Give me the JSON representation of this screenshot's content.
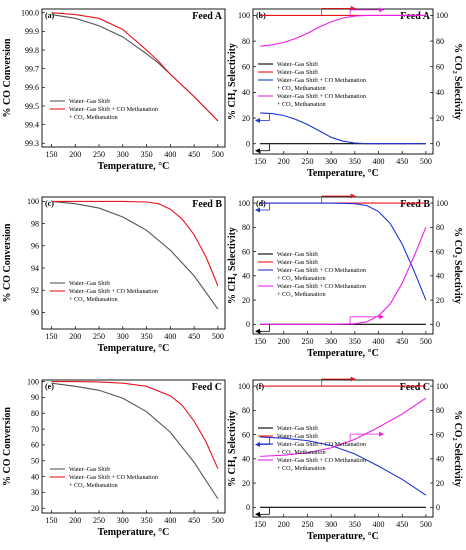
{
  "colors": {
    "black": "#000000",
    "red": "#e8141c",
    "gray": "#555555",
    "blue": "#1f33d6",
    "magenta": "#ee1ee8"
  },
  "chart_data": [
    {
      "type": "line",
      "tag": "(a)",
      "feed": "Feed A",
      "xlabel": "Temperature, °C",
      "ylabel": "% CO Conversion",
      "xlim": [
        130,
        515
      ],
      "ylim": [
        99.28,
        100.02
      ],
      "xticks": [
        "150",
        "200",
        "250",
        "300",
        "350",
        "400",
        "450",
        "500"
      ],
      "yticks": [
        "99.3",
        "99.4",
        "99.5",
        "99.6",
        "99.7",
        "99.8",
        "99.9",
        "100.0"
      ],
      "legend": [
        "Water–Gas Shift",
        "Water–Gas Shift + CO Methanation",
        "+ CO₂ Methanation"
      ],
      "series": [
        {
          "name": "Water–Gas Shift",
          "color": "gray",
          "x": [
            150,
            200,
            250,
            300,
            350,
            375,
            400,
            450,
            500
          ],
          "y": [
            99.99,
            99.97,
            99.93,
            99.87,
            99.78,
            99.73,
            99.67,
            99.55,
            99.42
          ]
        },
        {
          "name": "Water–Gas Shift + CO Methanation + CO₂ Methanation",
          "color": "red",
          "x": [
            150,
            200,
            250,
            300,
            350,
            375,
            400,
            450,
            500
          ],
          "y": [
            100.0,
            99.99,
            99.97,
            99.91,
            99.8,
            99.74,
            99.67,
            99.55,
            99.42
          ]
        }
      ]
    },
    {
      "type": "line",
      "tag": "(b)",
      "feed": "Feed A",
      "xlabel": "Temperature, °C",
      "ylabel": "% CH₄ Selectivity",
      "y2label": "% CO₂ Selectivity",
      "xlim": [
        135,
        515
      ],
      "ylim": [
        -8,
        105
      ],
      "y2lim": [
        -8,
        105
      ],
      "xticks": [
        "150",
        "200",
        "250",
        "300",
        "350",
        "400",
        "450",
        "500"
      ],
      "yticks": [
        "0",
        "20",
        "40",
        "60",
        "80",
        "100"
      ],
      "y2ticks": [
        "0",
        "20",
        "40",
        "60",
        "80",
        "100"
      ],
      "legend": [
        "Water–Gas Shift",
        "Water–Gas Shift",
        "Water–Gas Shift + CO Methanation",
        "+ CO₂ Methanation",
        "Water–Gas Shift + CO Methanation",
        "+ CO₂ Methanation"
      ],
      "series": [
        {
          "name": "Water–Gas Shift",
          "color": "black",
          "axis": "left",
          "x": [
            150,
            500
          ],
          "y": [
            0,
            0
          ]
        },
        {
          "name": "Water–Gas Shift",
          "color": "red",
          "axis": "right",
          "x": [
            150,
            500
          ],
          "y": [
            100,
            100
          ]
        },
        {
          "name": "Water–Gas Shift + CO Methanation + CO₂ Methanation",
          "color": "blue",
          "axis": "left",
          "x": [
            150,
            175,
            200,
            225,
            250,
            275,
            300,
            325,
            350,
            375,
            400,
            500
          ],
          "y": [
            24,
            23.5,
            22,
            19,
            15,
            10,
            5,
            2,
            0.5,
            0,
            0,
            0
          ]
        },
        {
          "name": "Water–Gas Shift + CO Methanation + CO₂ Methanation",
          "color": "magenta",
          "axis": "right",
          "x": [
            150,
            175,
            200,
            225,
            250,
            275,
            300,
            325,
            350,
            375,
            400,
            500
          ],
          "y": [
            76,
            77,
            79,
            82,
            86,
            91,
            95,
            98,
            99.5,
            100,
            100,
            100
          ]
        }
      ]
    },
    {
      "type": "line",
      "tag": "(c)",
      "feed": "Feed B",
      "xlabel": "Temperature, °C",
      "ylabel": "% CO Conversion",
      "xlim": [
        130,
        515
      ],
      "ylim": [
        88.5,
        100.4
      ],
      "xticks": [
        "150",
        "200",
        "250",
        "300",
        "350",
        "400",
        "450",
        "500"
      ],
      "yticks": [
        "90",
        "92",
        "94",
        "96",
        "98",
        "100"
      ],
      "legend": [
        "Water–Gas Shift",
        "Water–Gas Shift + CO Methanation",
        "+ CO₂ Methanation"
      ],
      "series": [
        {
          "name": "Water–Gas Shift",
          "color": "gray",
          "x": [
            150,
            200,
            250,
            300,
            350,
            400,
            450,
            500
          ],
          "y": [
            100,
            99.8,
            99.4,
            98.6,
            97.4,
            95.6,
            93.3,
            90.3
          ]
        },
        {
          "name": "Water–Gas Shift + CO Methanation + CO₂ Methanation",
          "color": "red",
          "x": [
            150,
            200,
            250,
            300,
            350,
            375,
            400,
            425,
            450,
            475,
            500
          ],
          "y": [
            100,
            100,
            100,
            100,
            99.95,
            99.8,
            99.3,
            98.4,
            97.0,
            95.0,
            92.4
          ]
        }
      ]
    },
    {
      "type": "line",
      "tag": "(d)",
      "feed": "Feed B",
      "xlabel": "Temperature, °C",
      "ylabel": "% CH₄ Selectivity",
      "y2label": "% CO₂ Selectivity",
      "xlim": [
        135,
        515
      ],
      "ylim": [
        -8,
        105
      ],
      "y2lim": [
        -8,
        105
      ],
      "xticks": [
        "150",
        "200",
        "250",
        "300",
        "350",
        "400",
        "450",
        "500"
      ],
      "yticks": [
        "0",
        "20",
        "40",
        "60",
        "80",
        "100"
      ],
      "y2ticks": [
        "0",
        "20",
        "40",
        "60",
        "80",
        "100"
      ],
      "legend": [
        "Water–Gas Shift",
        "Water–Gas Shift",
        "Water–Gas Shift + CO Methanation",
        "+ CO₂ Methanation",
        "Water–Gas Shift + CO Methanation",
        "+ CO₂ Methanation"
      ],
      "series": [
        {
          "name": "Water–Gas Shift",
          "color": "black",
          "axis": "left",
          "x": [
            150,
            500
          ],
          "y": [
            0,
            0
          ]
        },
        {
          "name": "Water–Gas Shift",
          "color": "red",
          "axis": "right",
          "x": [
            150,
            500
          ],
          "y": [
            100,
            100
          ]
        },
        {
          "name": "Water–Gas Shift + CO Methanation + CO₂ Methanation",
          "color": "blue",
          "axis": "left",
          "x": [
            150,
            300,
            350,
            375,
            400,
            425,
            450,
            475,
            500
          ],
          "y": [
            100,
            100,
            99.5,
            98,
            93,
            83,
            66,
            44,
            20
          ]
        },
        {
          "name": "Water–Gas Shift + CO Methanation + CO₂ Methanation",
          "color": "magenta",
          "axis": "right",
          "x": [
            150,
            300,
            350,
            375,
            400,
            425,
            450,
            475,
            500
          ],
          "y": [
            0,
            0,
            0.5,
            2,
            7,
            17,
            34,
            56,
            80
          ]
        }
      ]
    },
    {
      "type": "line",
      "tag": "(e)",
      "feed": "Feed C",
      "xlabel": "Temperature, °C",
      "ylabel": "% CO Conversion",
      "xlim": [
        130,
        515
      ],
      "ylim": [
        17,
        101
      ],
      "xticks": [
        "150",
        "200",
        "250",
        "300",
        "350",
        "400",
        "450",
        "500"
      ],
      "yticks": [
        "20",
        "30",
        "40",
        "50",
        "60",
        "70",
        "80",
        "90",
        "100"
      ],
      "legend": [
        "Water–Gas Shift",
        "Water–Gas Shift + CO Methanation",
        "+ CO₂ Methanation"
      ],
      "series": [
        {
          "name": "Water–Gas Shift",
          "color": "gray",
          "x": [
            150,
            200,
            250,
            300,
            350,
            400,
            450,
            500
          ],
          "y": [
            99,
            97,
            94.5,
            89.5,
            81,
            68,
            49,
            26
          ]
        },
        {
          "name": "Water–Gas Shift + CO Methanation + CO₂ Methanation",
          "color": "red",
          "x": [
            150,
            200,
            250,
            300,
            350,
            400,
            425,
            450,
            475,
            500
          ],
          "y": [
            100,
            100,
            99.8,
            99,
            97,
            91,
            85,
            75,
            62,
            45
          ]
        }
      ]
    },
    {
      "type": "line",
      "tag": "(f)",
      "feed": "Feed C",
      "xlabel": "Temperature, °C",
      "ylabel": "% CH₄ Selectivity",
      "y2label": "% CO₂ Selectivity",
      "xlim": [
        135,
        515
      ],
      "ylim": [
        -8,
        105
      ],
      "y2lim": [
        -8,
        105
      ],
      "xticks": [
        "150",
        "200",
        "250",
        "300",
        "350",
        "400",
        "450",
        "500"
      ],
      "yticks": [
        "0",
        "20",
        "40",
        "60",
        "80",
        "100"
      ],
      "y2ticks": [
        "0",
        "20",
        "40",
        "60",
        "80",
        "100"
      ],
      "legend": [
        "Water–Gas Shift",
        "Water–Gas Shift",
        "Water–Gas Shift + CO Methanation",
        "+ CO₂ Methanation",
        "Water–Gas Shift + CO Methanation",
        "+ CO₂ Methanation"
      ],
      "series": [
        {
          "name": "Water–Gas Shift",
          "color": "black",
          "axis": "left",
          "x": [
            150,
            500
          ],
          "y": [
            0,
            0
          ]
        },
        {
          "name": "Water–Gas Shift",
          "color": "red",
          "axis": "right",
          "x": [
            150,
            500
          ],
          "y": [
            100,
            100
          ]
        },
        {
          "name": "Water–Gas Shift + CO Methanation + CO₂ Methanation",
          "color": "blue",
          "axis": "left",
          "x": [
            150,
            200,
            250,
            300,
            350,
            400,
            450,
            500
          ],
          "y": [
            58,
            57,
            55,
            51,
            44,
            34,
            23,
            10
          ]
        },
        {
          "name": "Water–Gas Shift + CO Methanation + CO₂ Methanation",
          "color": "magenta",
          "axis": "right",
          "x": [
            150,
            200,
            250,
            300,
            350,
            400,
            450,
            500
          ],
          "y": [
            42,
            43,
            45,
            49,
            56,
            66,
            77,
            90
          ]
        }
      ]
    }
  ]
}
